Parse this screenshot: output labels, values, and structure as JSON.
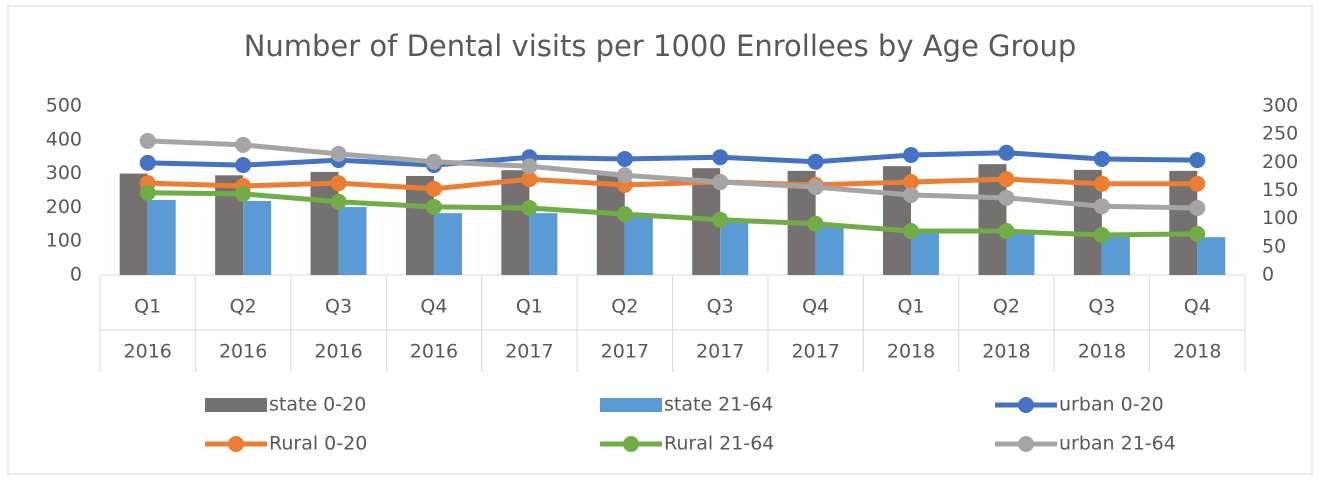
{
  "chart_data": {
    "type": "bar-line",
    "title": "Number of Dental visits per 1000 Enrollees by Age Group",
    "categories": [
      [
        "Q1",
        "2016"
      ],
      [
        "Q2",
        "2016"
      ],
      [
        "Q3",
        "2016"
      ],
      [
        "Q4",
        "2016"
      ],
      [
        "Q1",
        "2017"
      ],
      [
        "Q2",
        "2017"
      ],
      [
        "Q3",
        "2017"
      ],
      [
        "Q4",
        "2017"
      ],
      [
        "Q1",
        "2018"
      ],
      [
        "Q2",
        "2018"
      ],
      [
        "Q3",
        "2018"
      ],
      [
        "Q4",
        "2018"
      ]
    ],
    "ylim": [
      0,
      500
    ],
    "yticks": [
      0,
      100,
      200,
      300,
      400,
      500
    ],
    "y2lim": [
      0,
      300
    ],
    "y2ticks": [
      0,
      50,
      100,
      150,
      200,
      250,
      300
    ],
    "series": [
      {
        "name": "state 0-20",
        "type": "bar",
        "color": "#767171",
        "values": [
          300,
          295,
          305,
          293,
          310,
          302,
          316,
          308,
          322,
          328,
          311,
          308
        ]
      },
      {
        "name": "state 21-64",
        "type": "bar",
        "color": "#5b9bd5",
        "values": [
          222,
          219,
          201,
          183,
          183,
          172,
          157,
          151,
          130,
          127,
          115,
          112
        ]
      },
      {
        "name": "urban 0-20",
        "type": "line",
        "axis": "y2",
        "color": "#4472c4",
        "values": [
          199,
          195,
          204,
          195,
          209,
          206,
          209,
          201,
          213,
          217,
          206,
          204
        ]
      },
      {
        "name": "Rural 0-20",
        "type": "line",
        "axis": "y2",
        "color": "#ed7d31",
        "values": [
          163,
          158,
          163,
          153,
          170,
          160,
          165,
          160,
          165,
          170,
          162,
          162
        ]
      },
      {
        "name": "Rural 21-64",
        "type": "line",
        "axis": "y2",
        "color": "#70ad47",
        "values": [
          146,
          144,
          130,
          121,
          119,
          108,
          98,
          91,
          78,
          78,
          71,
          73
        ]
      },
      {
        "name": "urban 21-64",
        "type": "line",
        "axis": "y2",
        "color": "#a5a5a5",
        "values": [
          238,
          231,
          215,
          201,
          193,
          177,
          165,
          156,
          142,
          137,
          122,
          119
        ]
      }
    ]
  }
}
